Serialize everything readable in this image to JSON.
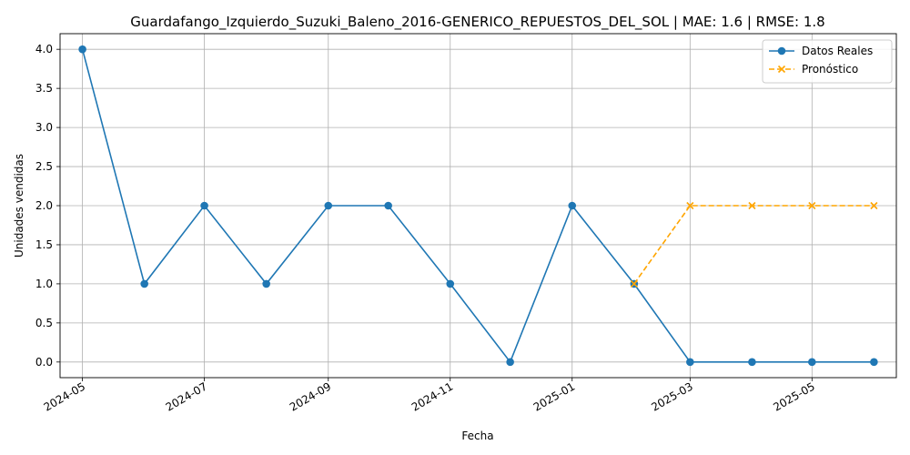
{
  "chart_data": {
    "type": "line",
    "title": "Guardafango_Izquierdo_Suzuki_Baleno_2016-GENERICO_REPUESTOS_DEL_SOL | MAE: 1.6 | RMSE: 1.8",
    "xlabel": "Fecha",
    "ylabel": "Unidades vendidas",
    "x_ticks": [
      "2024-05",
      "2024-07",
      "2024-09",
      "2024-11",
      "2025-01",
      "2025-03",
      "2025-05"
    ],
    "y_ticks": [
      "0.0",
      "0.5",
      "1.0",
      "1.5",
      "2.0",
      "2.5",
      "3.0",
      "3.5",
      "4.0"
    ],
    "ylim": [
      -0.2,
      4.2
    ],
    "grid": true,
    "legend_position": "top-right",
    "series": [
      {
        "name": "Datos Reales",
        "color": "#1f77b4",
        "style": "solid",
        "marker": "circle",
        "x": [
          "2024-05",
          "2024-06",
          "2024-07",
          "2024-08",
          "2024-09",
          "2024-10",
          "2024-11",
          "2024-12",
          "2025-01",
          "2025-02",
          "2025-03",
          "2025-04",
          "2025-05",
          "2025-06"
        ],
        "values": [
          4,
          1,
          2,
          1,
          2,
          2,
          1,
          0,
          2,
          1,
          0,
          0,
          0,
          0
        ]
      },
      {
        "name": "Pronóstico",
        "color": "#ffa500",
        "style": "dashed",
        "marker": "x",
        "x": [
          "2025-02",
          "2025-03",
          "2025-04",
          "2025-05",
          "2025-06"
        ],
        "values": [
          1,
          2,
          2,
          2,
          2
        ]
      }
    ]
  }
}
